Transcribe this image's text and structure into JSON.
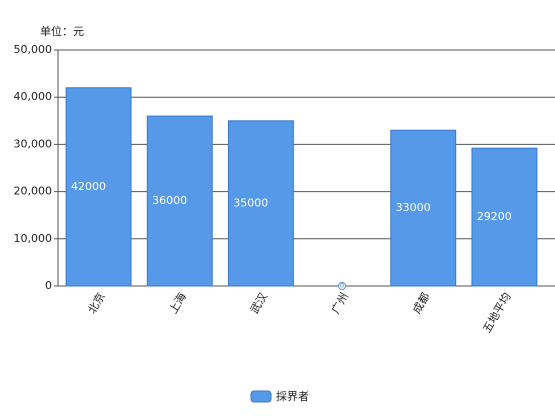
{
  "chart_data": {
    "type": "bar",
    "unit_label": "单位：元",
    "categories": [
      "北京",
      "上海",
      "武汉",
      "广州",
      "成都",
      "五地平均"
    ],
    "series": [
      {
        "name": "採界者",
        "color": "#5599e8",
        "values": [
          42000,
          36000,
          35000,
          0,
          33000,
          29200
        ]
      }
    ],
    "ylim": [
      0,
      50000
    ],
    "yticks": [
      0,
      {
        "value": 10000,
        "label": "10,000"
      },
      {
        "value": 20000,
        "label": "20,000"
      },
      {
        "value": 30000,
        "label": "30,000"
      },
      {
        "value": 40000,
        "label": "40,000"
      },
      {
        "value": 50000,
        "label": "50,000"
      }
    ],
    "grid": true,
    "legend": "bottom"
  }
}
